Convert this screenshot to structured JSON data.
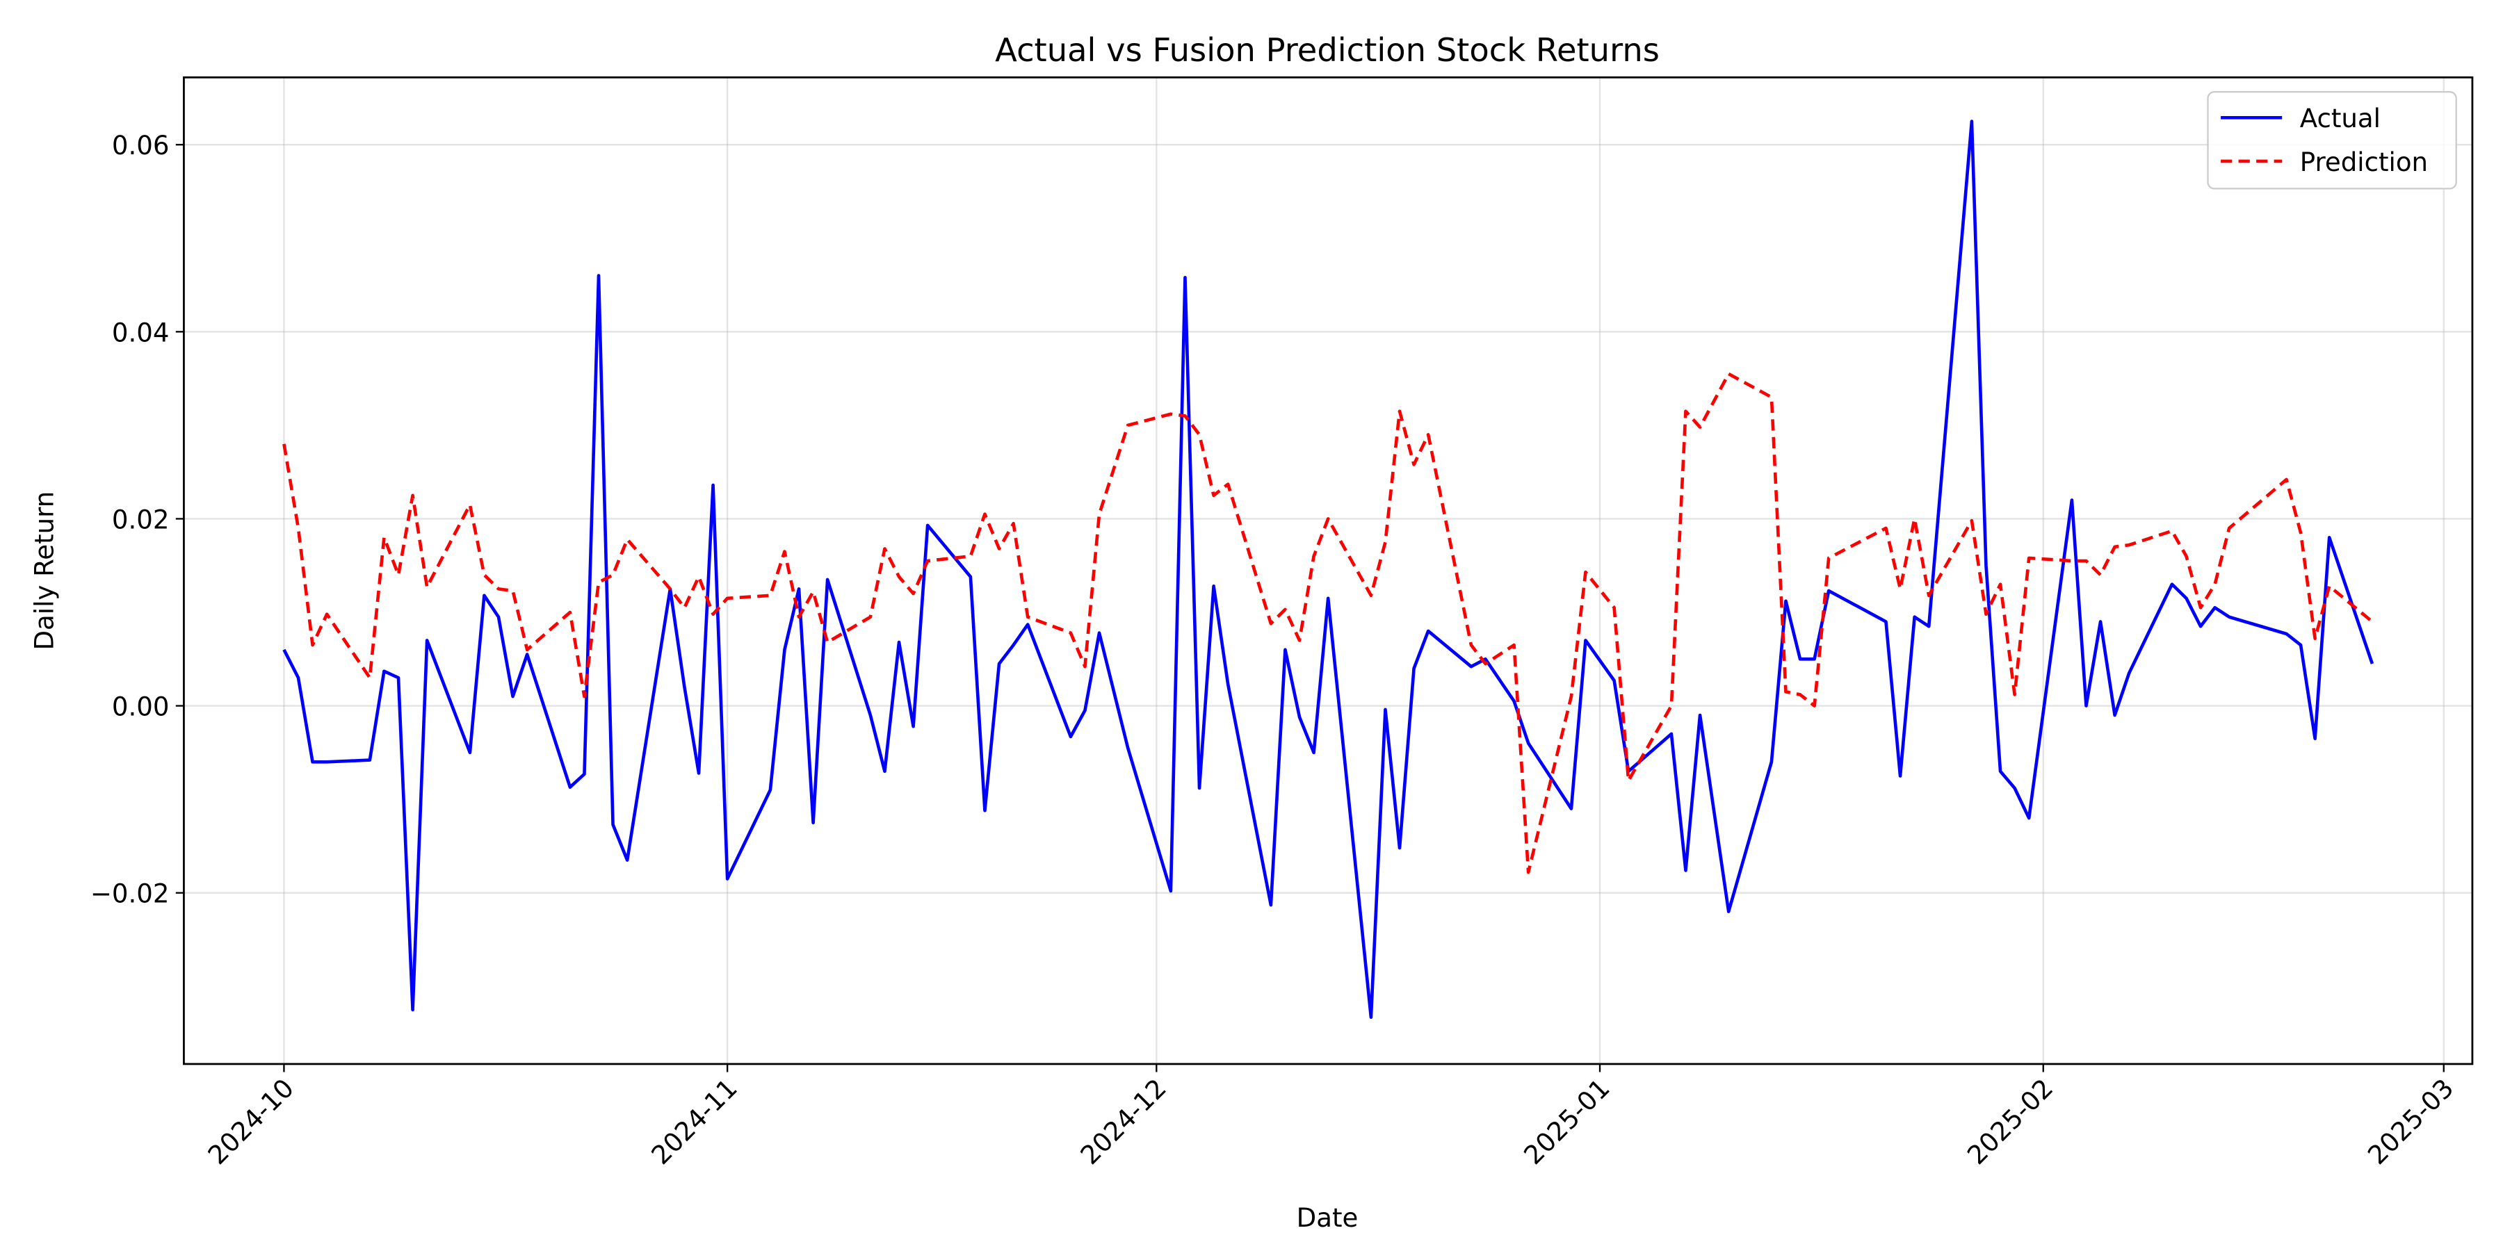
{
  "chart_data": {
    "type": "line",
    "title": "Actual vs Fusion Prediction Stock Returns",
    "xlabel": "Date",
    "ylabel": "Daily Return",
    "x": [
      "2024-10-01",
      "2024-10-02",
      "2024-10-03",
      "2024-10-04",
      "2024-10-07",
      "2024-10-08",
      "2024-10-09",
      "2024-10-10",
      "2024-10-11",
      "2024-10-14",
      "2024-10-15",
      "2024-10-16",
      "2024-10-17",
      "2024-10-18",
      "2024-10-21",
      "2024-10-22",
      "2024-10-23",
      "2024-10-24",
      "2024-10-25",
      "2024-10-28",
      "2024-10-29",
      "2024-10-30",
      "2024-10-31",
      "2024-11-01",
      "2024-11-04",
      "2024-11-05",
      "2024-11-06",
      "2024-11-07",
      "2024-11-08",
      "2024-11-11",
      "2024-11-12",
      "2024-11-13",
      "2024-11-14",
      "2024-11-15",
      "2024-11-18",
      "2024-11-19",
      "2024-11-20",
      "2024-11-21",
      "2024-11-22",
      "2024-11-25",
      "2024-11-26",
      "2024-11-27",
      "2024-11-29",
      "2024-12-02",
      "2024-12-03",
      "2024-12-04",
      "2024-12-05",
      "2024-12-06",
      "2024-12-09",
      "2024-12-10",
      "2024-12-11",
      "2024-12-12",
      "2024-12-13",
      "2024-12-16",
      "2024-12-17",
      "2024-12-18",
      "2024-12-19",
      "2024-12-20",
      "2024-12-23",
      "2024-12-24",
      "2024-12-26",
      "2024-12-27",
      "2024-12-30",
      "2024-12-31",
      "2025-01-02",
      "2025-01-03",
      "2025-01-06",
      "2025-01-07",
      "2025-01-08",
      "2025-01-10",
      "2025-01-13",
      "2025-01-14",
      "2025-01-15",
      "2025-01-16",
      "2025-01-17",
      "2025-01-21",
      "2025-01-22",
      "2025-01-23",
      "2025-01-24",
      "2025-01-27",
      "2025-01-28",
      "2025-01-29",
      "2025-01-30",
      "2025-01-31",
      "2025-02-03",
      "2025-02-04",
      "2025-02-05",
      "2025-02-06",
      "2025-02-07",
      "2025-02-10",
      "2025-02-11",
      "2025-02-12",
      "2025-02-13",
      "2025-02-14",
      "2025-02-18",
      "2025-02-19",
      "2025-02-20",
      "2025-02-21",
      "2025-02-24"
    ],
    "series": [
      {
        "name": "Actual",
        "color": "#0000ff",
        "dash": "solid",
        "values": [
          0.006,
          0.003,
          -0.006,
          -0.006,
          -0.0058,
          0.0037,
          0.003,
          -0.0325,
          0.007,
          -0.005,
          0.0118,
          0.0095,
          0.001,
          0.0055,
          -0.0087,
          -0.0073,
          0.046,
          -0.0127,
          -0.0165,
          0.0125,
          0.002,
          -0.0072,
          0.0236,
          -0.0185,
          -0.009,
          0.006,
          0.0125,
          -0.0125,
          0.0135,
          -0.001,
          -0.007,
          0.0068,
          -0.0022,
          0.0193,
          0.0138,
          -0.0112,
          0.0045,
          0.0065,
          0.0087,
          -0.0033,
          -0.0005,
          0.0078,
          -0.0045,
          -0.0198,
          0.0458,
          -0.0088,
          0.0128,
          0.0023,
          -0.0213,
          0.006,
          -0.0012,
          -0.005,
          0.0115,
          -0.0333,
          -0.0004,
          -0.0152,
          0.004,
          0.008,
          0.0042,
          0.005,
          0.0005,
          -0.004,
          -0.011,
          0.007,
          0.0027,
          -0.007,
          -0.003,
          -0.0176,
          -0.001,
          -0.022,
          -0.006,
          0.0112,
          0.005,
          0.005,
          0.0123,
          0.009,
          -0.0075,
          0.0095,
          0.0085,
          0.0625,
          0.015,
          -0.007,
          -0.0088,
          -0.012,
          0.022,
          0.0,
          0.009,
          -0.001,
          0.0035,
          0.013,
          0.0115,
          0.0085,
          0.0105,
          0.0095,
          0.0077,
          0.0065,
          -0.0035,
          0.018,
          0.0045
        ]
      },
      {
        "name": "Prediction",
        "color": "#ff0000",
        "dash": "dashed",
        "values": [
          0.028,
          0.019,
          0.0065,
          0.0098,
          0.003,
          0.018,
          0.014,
          0.0225,
          0.0127,
          0.0215,
          0.014,
          0.0125,
          0.0123,
          0.006,
          0.01,
          0.001,
          0.0132,
          0.014,
          0.0178,
          0.0125,
          0.0105,
          0.0138,
          0.0098,
          0.0115,
          0.0118,
          0.0165,
          0.0095,
          0.0122,
          0.0068,
          0.0095,
          0.0168,
          0.0138,
          0.012,
          0.0155,
          0.016,
          0.0205,
          0.0168,
          0.0195,
          0.0095,
          0.0078,
          0.0042,
          0.0205,
          0.03,
          0.0312,
          0.031,
          0.029,
          0.0225,
          0.0237,
          0.0088,
          0.0103,
          0.007,
          0.016,
          0.02,
          0.0118,
          0.0175,
          0.0315,
          0.0258,
          0.029,
          0.0065,
          0.0045,
          0.0065,
          -0.0178,
          0.001,
          0.0143,
          0.0105,
          -0.008,
          0.0,
          0.0315,
          0.0298,
          0.0355,
          0.033,
          0.0015,
          0.0012,
          0.0,
          0.0158,
          0.019,
          0.0125,
          0.02,
          0.0118,
          0.0198,
          0.0098,
          0.013,
          0.0012,
          0.0158,
          0.0155,
          0.0155,
          0.014,
          0.017,
          0.0172,
          0.0187,
          0.016,
          0.0105,
          0.013,
          0.019,
          0.0242,
          0.0185,
          0.0072,
          0.0128,
          0.009
        ]
      }
    ],
    "xlim": [
      "2024-09-24",
      "2025-03-03"
    ],
    "xticks": [
      "2024-10",
      "2024-11",
      "2024-12",
      "2025-01",
      "2025-02",
      "2025-03"
    ],
    "ylim": [
      -0.0383,
      0.0672
    ],
    "yticks": [
      {
        "value": -0.02,
        "label": "−0.02"
      },
      {
        "value": 0,
        "label": "0.00"
      },
      0.02,
      0.04,
      0.06
    ],
    "grid": true,
    "legend": "upper right"
  }
}
